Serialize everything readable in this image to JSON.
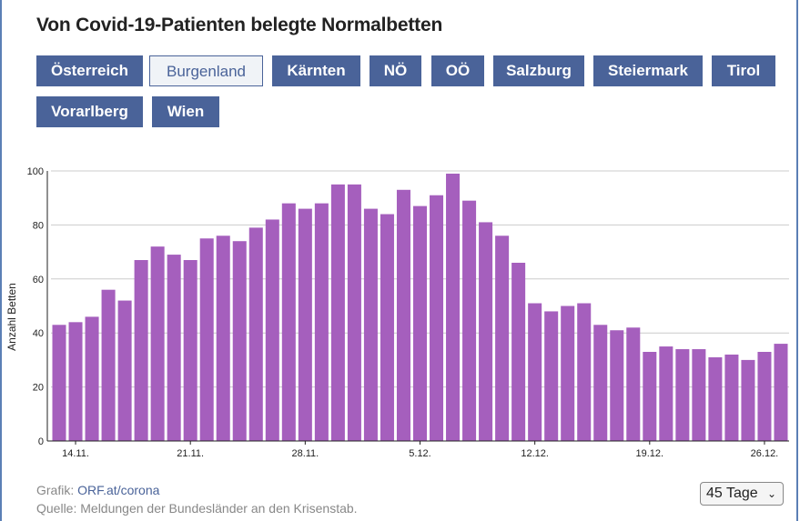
{
  "title": "Von Covid-19-Patienten belegte Normalbetten",
  "regions": [
    "Österreich",
    "Burgenland",
    "Kärnten",
    "NÖ",
    "OÖ",
    "Salzburg",
    "Steiermark",
    "Tirol",
    "Vorarlberg",
    "Wien"
  ],
  "active_region": "Burgenland",
  "footer": {
    "grafik_prefix": "Grafik:",
    "grafik_link": "ORF.at/corona",
    "quelle": "Quelle: Meldungen der Bundesländer an den Krisenstab."
  },
  "range_select": {
    "value": "45 Tage"
  },
  "colors": {
    "bar": "#a55fbd",
    "button": "#4a6399",
    "grid": "#cccccc"
  },
  "chart_data": {
    "type": "bar",
    "ylabel": "Anzahl Betten",
    "xlabel": "",
    "ylim": [
      0,
      100
    ],
    "yticks": [
      0,
      20,
      40,
      60,
      80,
      100
    ],
    "grid": true,
    "x_tick_labels": [
      {
        "index": 1,
        "label": "14.11."
      },
      {
        "index": 8,
        "label": "21.11."
      },
      {
        "index": 15,
        "label": "28.11."
      },
      {
        "index": 22,
        "label": "5.12."
      },
      {
        "index": 29,
        "label": "12.12."
      },
      {
        "index": 36,
        "label": "19.12."
      },
      {
        "index": 43,
        "label": "26.12."
      }
    ],
    "values": [
      43,
      44,
      46,
      56,
      52,
      67,
      72,
      69,
      67,
      75,
      76,
      74,
      79,
      82,
      88,
      86,
      88,
      95,
      95,
      86,
      84,
      93,
      87,
      91,
      99,
      89,
      81,
      76,
      66,
      51,
      48,
      50,
      51,
      43,
      41,
      42,
      33,
      35,
      34,
      34,
      31,
      32,
      30,
      33,
      36
    ]
  }
}
